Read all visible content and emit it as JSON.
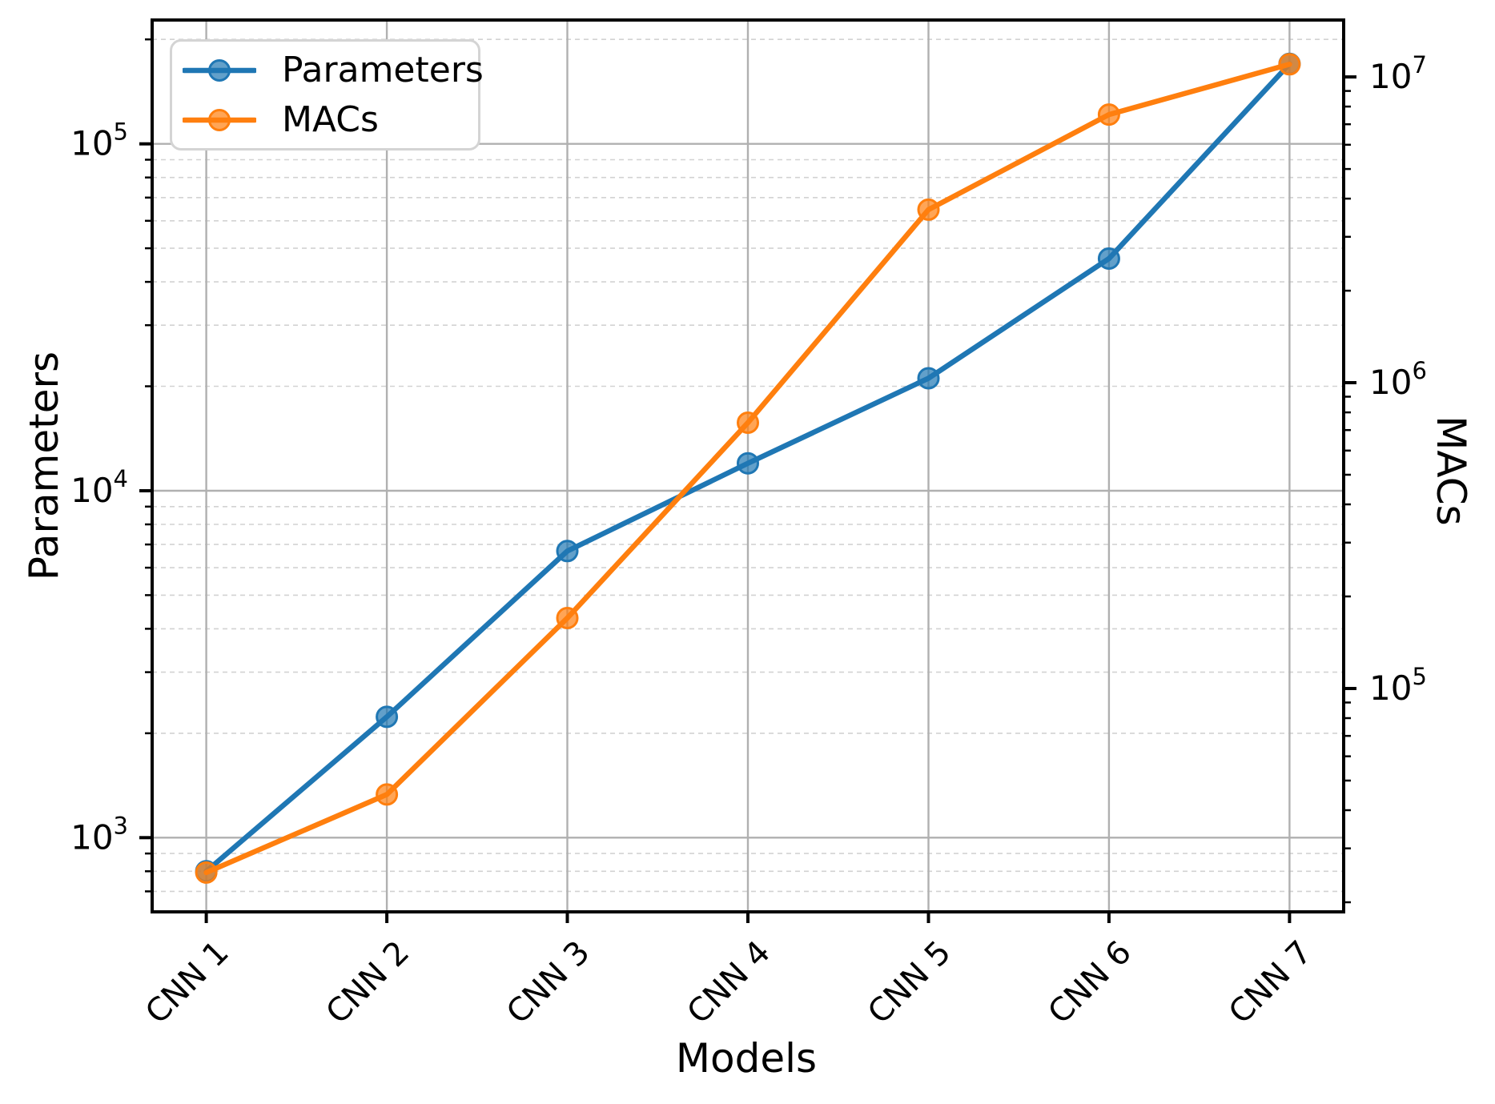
{
  "figure": {
    "background_color": "#ffffff"
  },
  "chart_data": {
    "type": "line",
    "title": "",
    "xlabel": "Models",
    "ylabel_left": "Parameters",
    "ylabel_right": "MACs",
    "categories": [
      "CNN 1",
      "CNN 2",
      "CNN 3",
      "CNN 4",
      "CNN 5",
      "CNN 6",
      "CNN 7"
    ],
    "x_tick_rotation": 45,
    "axes": {
      "left": {
        "label": "Parameters",
        "scale": "log",
        "range": [
          611,
          227500
        ],
        "ticks": [
          "10^3",
          "10^4",
          "10^5"
        ]
      },
      "right": {
        "label": "MACs",
        "scale": "log",
        "range": [
          18600,
          15350000
        ],
        "ticks": [
          "10^5",
          "10^6",
          "10^7"
        ]
      }
    },
    "series": [
      {
        "name": "Parameters",
        "axis": "left",
        "color": "#1f77b4",
        "marker": "circle",
        "values": [
          800,
          2230,
          6700,
          12000,
          21100,
          46700,
          170000
        ]
      },
      {
        "name": "MACs",
        "axis": "right",
        "color": "#ff7f0e",
        "marker": "circle",
        "values": [
          25000,
          45000,
          170000,
          740000,
          3680000,
          7530000,
          11000000
        ]
      }
    ],
    "legend": {
      "position": "upper left",
      "labels": [
        "Parameters",
        "MACs"
      ]
    },
    "grid": {
      "major": true,
      "minor": true,
      "major_color": "#b0b0b0",
      "minor_color": "#d2d2d2",
      "minor_style": "dashed",
      "spine_color": "#000000"
    }
  }
}
